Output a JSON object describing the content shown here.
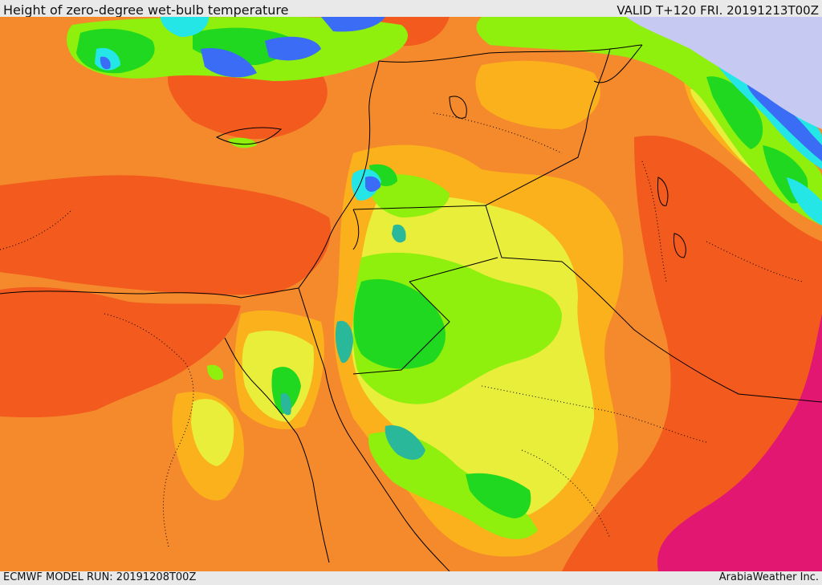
{
  "header": {
    "title": "Height of zero-degree wet-bulb temperature",
    "valid": "VALID T+120 FRI. 20191213T00Z"
  },
  "footer": {
    "model_run": "ECMWF MODEL RUN: 20191208T00Z",
    "credit": "ArabiaWeather Inc."
  },
  "colors": {
    "background_orange": "#f58a2c",
    "red_orange": "#f25a1e",
    "amber": "#fbb11c",
    "yellow": "#e9ee3b",
    "lime": "#8ef00c",
    "green": "#1fd81f",
    "teal": "#2ab89a",
    "cyan": "#24e6e6",
    "blue": "#3a6cf5",
    "lavender": "#c6c9f1",
    "magenta": "#e21771",
    "borders": "#000000"
  }
}
